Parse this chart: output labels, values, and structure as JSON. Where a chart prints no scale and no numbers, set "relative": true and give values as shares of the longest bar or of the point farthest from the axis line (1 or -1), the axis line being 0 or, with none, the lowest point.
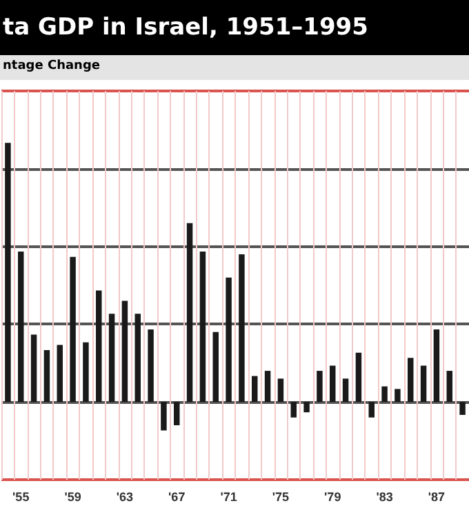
{
  "chart_data": {
    "type": "bar",
    "title": "ta GDP in Israel, 1951–1995",
    "subtitle": "ntage Change",
    "categories": [
      null,
      "'55",
      null,
      null,
      null,
      "'59",
      null,
      null,
      null,
      "'63",
      null,
      null,
      null,
      "'67",
      null,
      null,
      null,
      "'71",
      null,
      null,
      null,
      "'75",
      null,
      null,
      null,
      "'79",
      null,
      null,
      null,
      "'83",
      null,
      null,
      null,
      "'87",
      null,
      null
    ],
    "values": [
      1,
      0.58,
      0.26,
      0.2,
      0.22,
      0.56,
      0.23,
      0.43,
      0.34,
      0.39,
      0.34,
      0.28,
      -0.11,
      -0.09,
      0.69,
      0.58,
      0.27,
      0.48,
      0.57,
      0.1,
      0.12,
      0.09,
      -0.06,
      -0.04,
      0.12,
      0.14,
      0.09,
      0.19,
      -0.06,
      0.06,
      0.05,
      0.17,
      0.14,
      0.28,
      0.12,
      -0.05
    ],
    "color": "#1a1a1a",
    "relative": true,
    "grid": true,
    "tick_labels": "x"
  }
}
